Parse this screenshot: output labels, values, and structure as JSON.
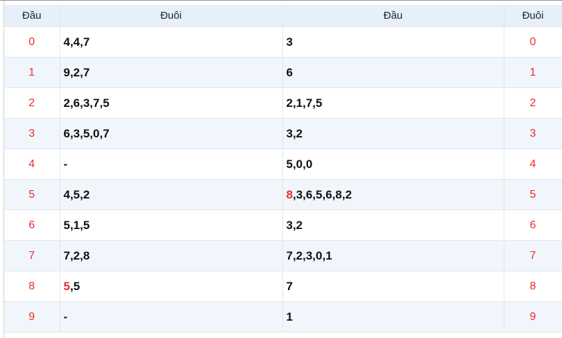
{
  "colors": {
    "digit_red": "#ee2b2b",
    "header_bg": "#e7f0f8",
    "row_alt_bg": "#f0f6fc",
    "cell_border": "#e2e6ea",
    "outer_border": "#cdd2d6",
    "top_divider": "#8f9499",
    "header_text": "#212529",
    "value_text": "#111111",
    "page_bg": "#ffffff"
  },
  "table": {
    "headers": [
      "Đầu",
      "Đuôi",
      "Đầu",
      "Đuôi"
    ],
    "rows": [
      {
        "digit": "0",
        "tails": [
          {
            "t": "4,4,7",
            "red": false
          }
        ],
        "heads": [
          {
            "t": "3",
            "red": false
          }
        ]
      },
      {
        "digit": "1",
        "tails": [
          {
            "t": "9,2,7",
            "red": false
          }
        ],
        "heads": [
          {
            "t": "6",
            "red": false
          }
        ]
      },
      {
        "digit": "2",
        "tails": [
          {
            "t": "2,6,3,7,5",
            "red": false
          }
        ],
        "heads": [
          {
            "t": "2,1,7,5",
            "red": false
          }
        ]
      },
      {
        "digit": "3",
        "tails": [
          {
            "t": "6,3,5,0,7",
            "red": false
          }
        ],
        "heads": [
          {
            "t": "3,2",
            "red": false
          }
        ]
      },
      {
        "digit": "4",
        "tails": [
          {
            "t": "-",
            "red": false
          }
        ],
        "heads": [
          {
            "t": "5,0,0",
            "red": false
          }
        ]
      },
      {
        "digit": "5",
        "tails": [
          {
            "t": "4,5,2",
            "red": false
          }
        ],
        "heads": [
          {
            "t": "8",
            "red": true
          },
          {
            "t": ",3,6,5,6,8,2",
            "red": false
          }
        ]
      },
      {
        "digit": "6",
        "tails": [
          {
            "t": "5,1,5",
            "red": false
          }
        ],
        "heads": [
          {
            "t": "3,2",
            "red": false
          }
        ]
      },
      {
        "digit": "7",
        "tails": [
          {
            "t": "7,2,8",
            "red": false
          }
        ],
        "heads": [
          {
            "t": "7,2,3,0,1",
            "red": false
          }
        ]
      },
      {
        "digit": "8",
        "tails": [
          {
            "t": "5",
            "red": true
          },
          {
            "t": ",5",
            "red": false
          }
        ],
        "heads": [
          {
            "t": "7",
            "red": false
          }
        ]
      },
      {
        "digit": "9",
        "tails": [
          {
            "t": "-",
            "red": false
          }
        ],
        "heads": [
          {
            "t": "1",
            "red": false
          }
        ]
      }
    ]
  }
}
